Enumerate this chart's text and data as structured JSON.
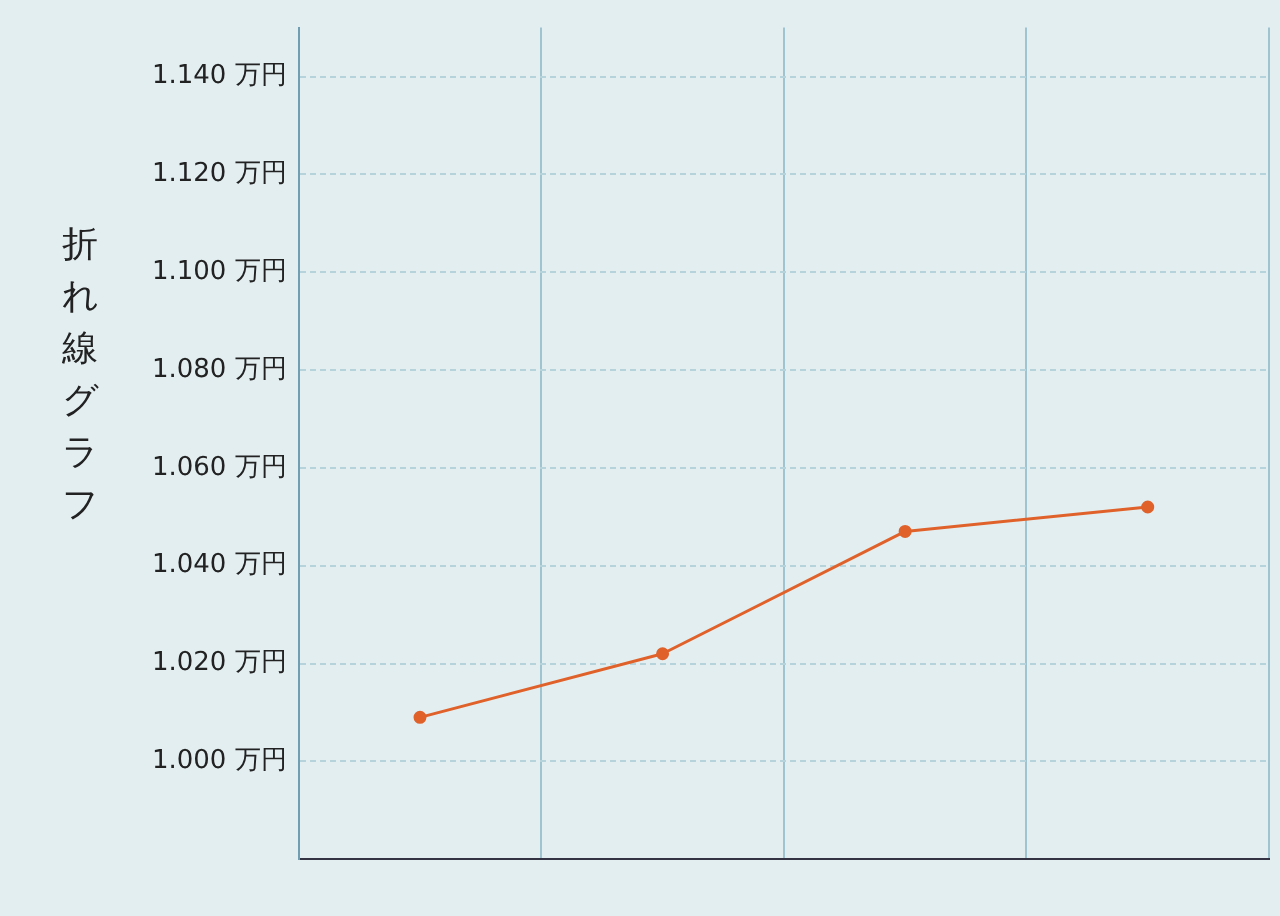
{
  "chart_data": {
    "type": "line",
    "ylabel": "折れ線グラフ",
    "categories": [
      null,
      null,
      null,
      null
    ],
    "series": [
      {
        "color": "#e0622a",
        "values": [
          1009,
          1022,
          1047,
          1052
        ]
      }
    ],
    "ylim": [
      980,
      1150
    ],
    "yticks": [
      {
        "value": 1000,
        "label": "1.000 万円"
      },
      {
        "value": 1020,
        "label": "1.020 万円"
      },
      {
        "value": 1040,
        "label": "1.040 万円"
      },
      {
        "value": 1060,
        "label": "1.060 万円"
      },
      {
        "value": 1080,
        "label": "1.080 万円"
      },
      {
        "value": 1100,
        "label": "1.100 万円"
      },
      {
        "value": 1120,
        "label": "1.120 万円"
      },
      {
        "value": 1140,
        "label": "1.140 万円"
      }
    ],
    "grid": true,
    "legend": false,
    "marker": "circle",
    "line_style": "solid"
  }
}
